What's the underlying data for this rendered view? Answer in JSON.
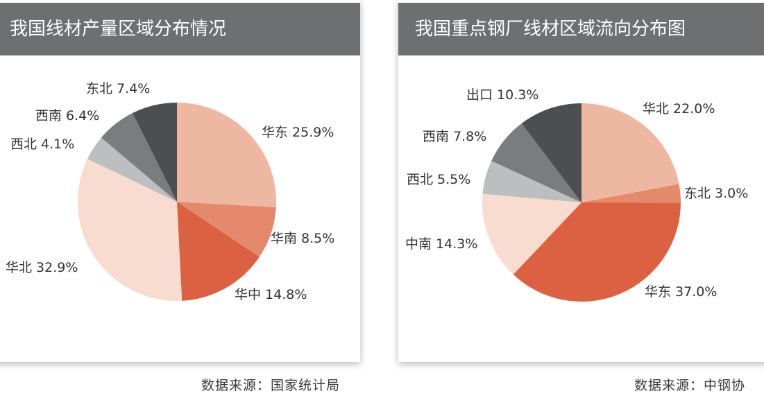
{
  "charts": [
    {
      "title": "我国线材产量区域分布情况",
      "source": "数据来源：国家统计局",
      "chart_data": {
        "type": "pie",
        "title": "我国线材产量区域分布情况",
        "slices": [
          {
            "label": "华东 25.9%",
            "value": 25.9,
            "color": "#eeb7a2"
          },
          {
            "label": "华南 8.5%",
            "value": 8.5,
            "color": "#e5896d"
          },
          {
            "label": "华中 14.8%",
            "value": 14.8,
            "color": "#dc6142"
          },
          {
            "label": "华北 32.9%",
            "value": 32.9,
            "color": "#f8dccf"
          },
          {
            "label": "西北 4.1%",
            "value": 4.1,
            "color": "#bdbebf"
          },
          {
            "label": "西南 6.4%",
            "value": 6.4,
            "color": "#7b7c7e"
          },
          {
            "label": "东北 7.4%",
            "value": 7.4,
            "color": "#4d4e51"
          }
        ],
        "start": "12 o'clock",
        "direction": "clockwise"
      }
    },
    {
      "title": "我国重点钢厂线材区域流向分布图",
      "source": "数据来源：中钢协",
      "chart_data": {
        "type": "pie",
        "title": "我国重点钢厂线材区域流向分布图",
        "slices": [
          {
            "label": "华北 22.0%",
            "value": 22.0,
            "color": "#eeb7a2"
          },
          {
            "label": "东北 3.0%",
            "value": 3.0,
            "color": "#e5896d"
          },
          {
            "label": "华东 37.0%",
            "value": 37.0,
            "color": "#dc6142"
          },
          {
            "label": "中南 14.3%",
            "value": 14.3,
            "color": "#f8dccf"
          },
          {
            "label": "西北 5.5%",
            "value": 5.5,
            "color": "#bdbebf"
          },
          {
            "label": "西南 7.8%",
            "value": 7.8,
            "color": "#7b7c7e"
          },
          {
            "label": "出口 10.3%",
            "value": 10.3,
            "color": "#4d4e51"
          }
        ],
        "start": "12 o'clock",
        "direction": "clockwise"
      }
    }
  ]
}
